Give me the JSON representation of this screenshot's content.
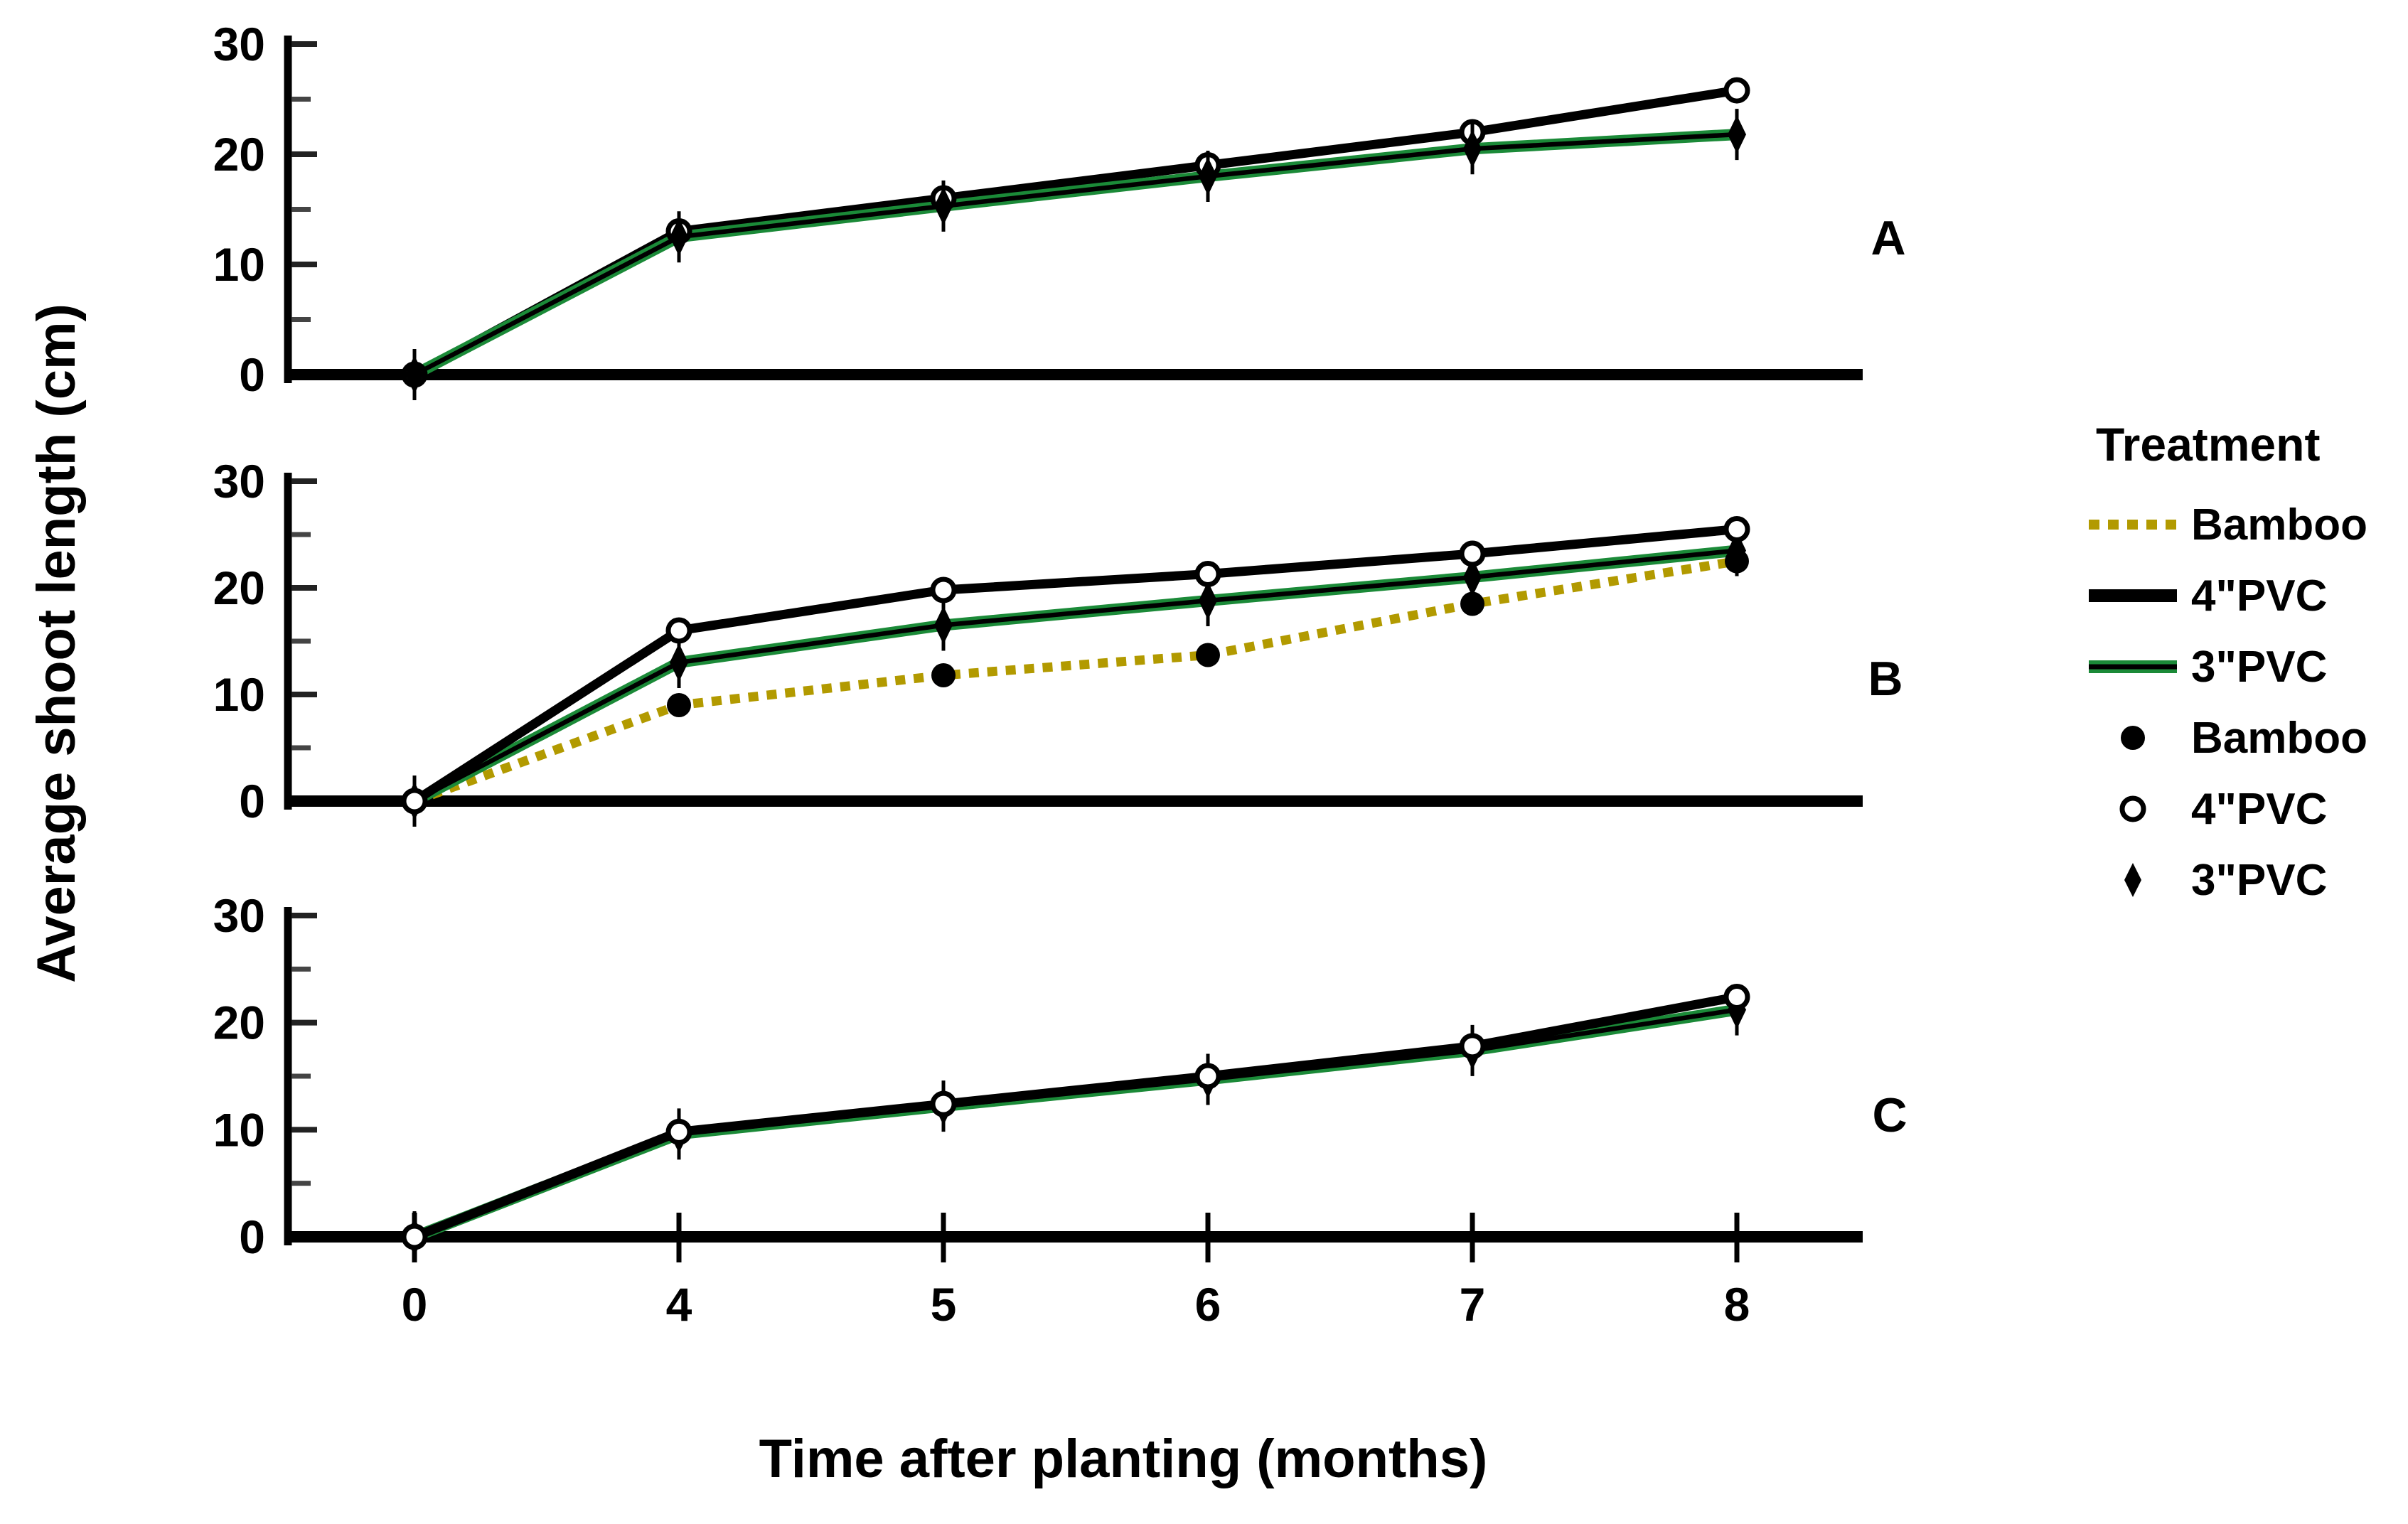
{
  "figure": {
    "y_axis_label": "Average shoot length (cm)",
    "x_axis_label": "Time after planting (months)"
  },
  "axes": {
    "x_tick_labels": [
      "0",
      "4",
      "5",
      "6",
      "7",
      "8"
    ],
    "y_tick_labels": [
      "0",
      "10",
      "20",
      "30"
    ]
  },
  "legend": {
    "title": "Treatment",
    "items": [
      {
        "label": "Bamboo",
        "swatch": "dotted-line",
        "color": "#b29a00"
      },
      {
        "label": "4\"PVC",
        "swatch": "solid-line",
        "color": "#000000"
      },
      {
        "label": "3\"PVC",
        "swatch": "green-line",
        "color": "#1b8a38"
      },
      {
        "label": "Bamboo",
        "swatch": "filled-circle-marker",
        "color": "#000000"
      },
      {
        "label": "4\"PVC",
        "swatch": "open-circle-marker",
        "color": "#000000"
      },
      {
        "label": "3\"PVC",
        "swatch": "diamond-marker",
        "color": "#000000"
      }
    ]
  },
  "chart_data": [
    {
      "type": "line",
      "panel_label": "A",
      "x": [
        0,
        4,
        5,
        6,
        7,
        8
      ],
      "xlabel": "Time after planting (months)",
      "ylabel": "Average shoot length (cm)",
      "ylim": [
        0,
        31
      ],
      "yticks": [
        0,
        10,
        20,
        30
      ],
      "yticks_minor": [
        5,
        15,
        25
      ],
      "grid": false,
      "series": [
        {
          "name": "4\"PVC",
          "marker": "open-circle",
          "line": "solid-black",
          "color": "#000000",
          "values": [
            0,
            13.0,
            16.0,
            19.0,
            22.0,
            25.8
          ]
        },
        {
          "name": "3\"PVC",
          "marker": "filled-diamond",
          "line": "green-black",
          "color": "#1b8a38",
          "values": [
            0,
            12.5,
            15.3,
            18.0,
            20.5,
            21.8
          ]
        }
      ]
    },
    {
      "type": "line",
      "panel_label": "B",
      "x": [
        0,
        4,
        5,
        6,
        7,
        8
      ],
      "xlabel": "Time after planting (months)",
      "ylabel": "Average shoot length (cm)",
      "ylim": [
        0,
        31
      ],
      "yticks": [
        0,
        10,
        20,
        30
      ],
      "yticks_minor": [
        5,
        15,
        25
      ],
      "grid": false,
      "series": [
        {
          "name": "Bamboo",
          "marker": "filled-circle",
          "line": "dotted-yellow",
          "color": "#b29a00",
          "values": [
            0,
            9.0,
            11.8,
            13.7,
            18.5,
            22.5
          ]
        },
        {
          "name": "3\"PVC",
          "marker": "filled-diamond",
          "line": "green-black",
          "color": "#1b8a38",
          "values": [
            0,
            13.0,
            16.5,
            18.8,
            21.0,
            23.5
          ]
        },
        {
          "name": "4\"PVC",
          "marker": "open-circle",
          "line": "solid-black",
          "color": "#000000",
          "values": [
            0,
            16.0,
            19.8,
            21.3,
            23.2,
            25.5
          ]
        }
      ]
    },
    {
      "type": "line",
      "panel_label": "C",
      "x": [
        0,
        4,
        5,
        6,
        7,
        8
      ],
      "xlabel": "Time after planting (months)",
      "ylabel": "Average shoot length (cm)",
      "ylim": [
        0,
        31
      ],
      "yticks": [
        0,
        10,
        20,
        30
      ],
      "yticks_minor": [
        5,
        15,
        25
      ],
      "grid": false,
      "series": [
        {
          "name": "3\"PVC",
          "marker": "filled-diamond",
          "line": "green-black",
          "color": "#1b8a38",
          "values": [
            0,
            9.6,
            12.2,
            14.7,
            17.4,
            21.2
          ]
        },
        {
          "name": "4\"PVC",
          "marker": "open-circle",
          "line": "solid-black",
          "color": "#000000",
          "values": [
            0,
            9.8,
            12.4,
            15.0,
            17.8,
            22.4
          ]
        }
      ]
    }
  ]
}
